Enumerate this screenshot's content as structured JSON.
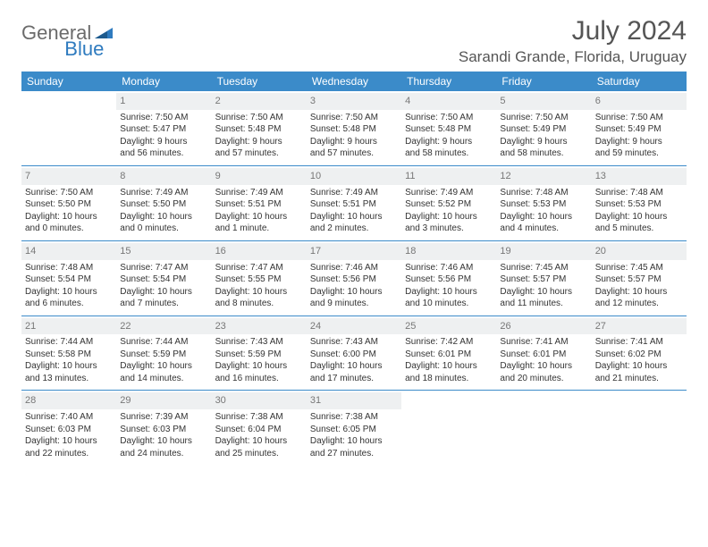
{
  "logo": {
    "general": "General",
    "blue": "Blue"
  },
  "header": {
    "month": "July 2024",
    "location": "Sarandi Grande, Florida, Uruguay"
  },
  "colors": {
    "header_bg": "#3b8bc9",
    "header_text": "#ffffff",
    "daynum_bg": "#eef0f1",
    "daynum_text": "#777777",
    "rule": "#3b8bc9",
    "body_text": "#333333",
    "title_text": "#555555",
    "logo_gray": "#6b6b6b",
    "logo_blue": "#2f7bbf"
  },
  "fonts": {
    "title_pt": 30,
    "location_pt": 17,
    "weekday_pt": 12,
    "daynum_pt": 11,
    "cell_pt": 10
  },
  "weekdays": [
    "Sunday",
    "Monday",
    "Tuesday",
    "Wednesday",
    "Thursday",
    "Friday",
    "Saturday"
  ],
  "weeks": [
    [
      null,
      {
        "n": "1",
        "sr": "Sunrise: 7:50 AM",
        "ss": "Sunset: 5:47 PM",
        "d1": "Daylight: 9 hours",
        "d2": "and 56 minutes."
      },
      {
        "n": "2",
        "sr": "Sunrise: 7:50 AM",
        "ss": "Sunset: 5:48 PM",
        "d1": "Daylight: 9 hours",
        "d2": "and 57 minutes."
      },
      {
        "n": "3",
        "sr": "Sunrise: 7:50 AM",
        "ss": "Sunset: 5:48 PM",
        "d1": "Daylight: 9 hours",
        "d2": "and 57 minutes."
      },
      {
        "n": "4",
        "sr": "Sunrise: 7:50 AM",
        "ss": "Sunset: 5:48 PM",
        "d1": "Daylight: 9 hours",
        "d2": "and 58 minutes."
      },
      {
        "n": "5",
        "sr": "Sunrise: 7:50 AM",
        "ss": "Sunset: 5:49 PM",
        "d1": "Daylight: 9 hours",
        "d2": "and 58 minutes."
      },
      {
        "n": "6",
        "sr": "Sunrise: 7:50 AM",
        "ss": "Sunset: 5:49 PM",
        "d1": "Daylight: 9 hours",
        "d2": "and 59 minutes."
      }
    ],
    [
      {
        "n": "7",
        "sr": "Sunrise: 7:50 AM",
        "ss": "Sunset: 5:50 PM",
        "d1": "Daylight: 10 hours",
        "d2": "and 0 minutes."
      },
      {
        "n": "8",
        "sr": "Sunrise: 7:49 AM",
        "ss": "Sunset: 5:50 PM",
        "d1": "Daylight: 10 hours",
        "d2": "and 0 minutes."
      },
      {
        "n": "9",
        "sr": "Sunrise: 7:49 AM",
        "ss": "Sunset: 5:51 PM",
        "d1": "Daylight: 10 hours",
        "d2": "and 1 minute."
      },
      {
        "n": "10",
        "sr": "Sunrise: 7:49 AM",
        "ss": "Sunset: 5:51 PM",
        "d1": "Daylight: 10 hours",
        "d2": "and 2 minutes."
      },
      {
        "n": "11",
        "sr": "Sunrise: 7:49 AM",
        "ss": "Sunset: 5:52 PM",
        "d1": "Daylight: 10 hours",
        "d2": "and 3 minutes."
      },
      {
        "n": "12",
        "sr": "Sunrise: 7:48 AM",
        "ss": "Sunset: 5:53 PM",
        "d1": "Daylight: 10 hours",
        "d2": "and 4 minutes."
      },
      {
        "n": "13",
        "sr": "Sunrise: 7:48 AM",
        "ss": "Sunset: 5:53 PM",
        "d1": "Daylight: 10 hours",
        "d2": "and 5 minutes."
      }
    ],
    [
      {
        "n": "14",
        "sr": "Sunrise: 7:48 AM",
        "ss": "Sunset: 5:54 PM",
        "d1": "Daylight: 10 hours",
        "d2": "and 6 minutes."
      },
      {
        "n": "15",
        "sr": "Sunrise: 7:47 AM",
        "ss": "Sunset: 5:54 PM",
        "d1": "Daylight: 10 hours",
        "d2": "and 7 minutes."
      },
      {
        "n": "16",
        "sr": "Sunrise: 7:47 AM",
        "ss": "Sunset: 5:55 PM",
        "d1": "Daylight: 10 hours",
        "d2": "and 8 minutes."
      },
      {
        "n": "17",
        "sr": "Sunrise: 7:46 AM",
        "ss": "Sunset: 5:56 PM",
        "d1": "Daylight: 10 hours",
        "d2": "and 9 minutes."
      },
      {
        "n": "18",
        "sr": "Sunrise: 7:46 AM",
        "ss": "Sunset: 5:56 PM",
        "d1": "Daylight: 10 hours",
        "d2": "and 10 minutes."
      },
      {
        "n": "19",
        "sr": "Sunrise: 7:45 AM",
        "ss": "Sunset: 5:57 PM",
        "d1": "Daylight: 10 hours",
        "d2": "and 11 minutes."
      },
      {
        "n": "20",
        "sr": "Sunrise: 7:45 AM",
        "ss": "Sunset: 5:57 PM",
        "d1": "Daylight: 10 hours",
        "d2": "and 12 minutes."
      }
    ],
    [
      {
        "n": "21",
        "sr": "Sunrise: 7:44 AM",
        "ss": "Sunset: 5:58 PM",
        "d1": "Daylight: 10 hours",
        "d2": "and 13 minutes."
      },
      {
        "n": "22",
        "sr": "Sunrise: 7:44 AM",
        "ss": "Sunset: 5:59 PM",
        "d1": "Daylight: 10 hours",
        "d2": "and 14 minutes."
      },
      {
        "n": "23",
        "sr": "Sunrise: 7:43 AM",
        "ss": "Sunset: 5:59 PM",
        "d1": "Daylight: 10 hours",
        "d2": "and 16 minutes."
      },
      {
        "n": "24",
        "sr": "Sunrise: 7:43 AM",
        "ss": "Sunset: 6:00 PM",
        "d1": "Daylight: 10 hours",
        "d2": "and 17 minutes."
      },
      {
        "n": "25",
        "sr": "Sunrise: 7:42 AM",
        "ss": "Sunset: 6:01 PM",
        "d1": "Daylight: 10 hours",
        "d2": "and 18 minutes."
      },
      {
        "n": "26",
        "sr": "Sunrise: 7:41 AM",
        "ss": "Sunset: 6:01 PM",
        "d1": "Daylight: 10 hours",
        "d2": "and 20 minutes."
      },
      {
        "n": "27",
        "sr": "Sunrise: 7:41 AM",
        "ss": "Sunset: 6:02 PM",
        "d1": "Daylight: 10 hours",
        "d2": "and 21 minutes."
      }
    ],
    [
      {
        "n": "28",
        "sr": "Sunrise: 7:40 AM",
        "ss": "Sunset: 6:03 PM",
        "d1": "Daylight: 10 hours",
        "d2": "and 22 minutes."
      },
      {
        "n": "29",
        "sr": "Sunrise: 7:39 AM",
        "ss": "Sunset: 6:03 PM",
        "d1": "Daylight: 10 hours",
        "d2": "and 24 minutes."
      },
      {
        "n": "30",
        "sr": "Sunrise: 7:38 AM",
        "ss": "Sunset: 6:04 PM",
        "d1": "Daylight: 10 hours",
        "d2": "and 25 minutes."
      },
      {
        "n": "31",
        "sr": "Sunrise: 7:38 AM",
        "ss": "Sunset: 6:05 PM",
        "d1": "Daylight: 10 hours",
        "d2": "and 27 minutes."
      },
      null,
      null,
      null
    ]
  ]
}
